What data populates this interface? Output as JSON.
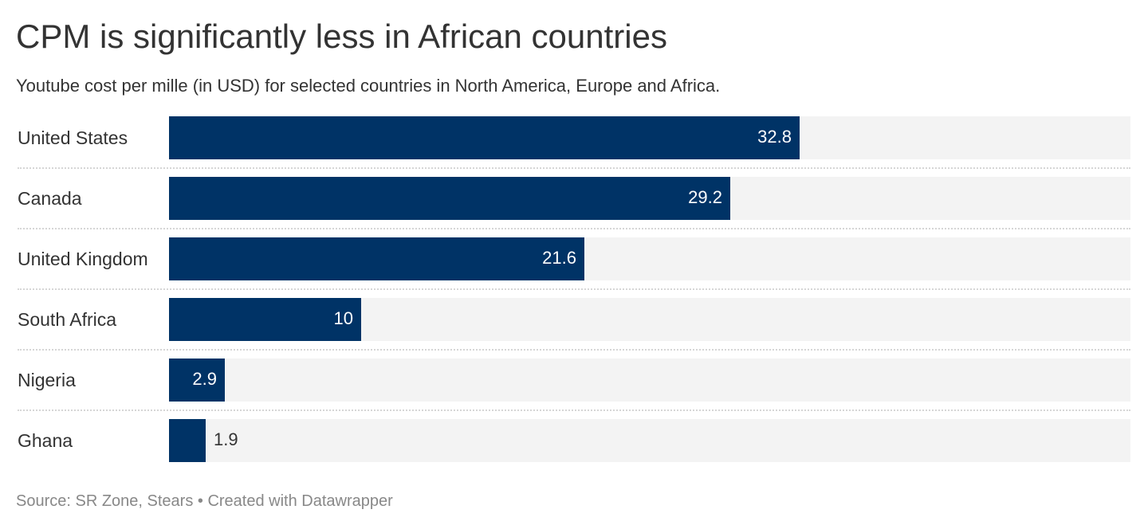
{
  "header": {
    "title": "CPM is significantly less in African countries",
    "subtitle": "Youtube cost per mille (in USD) for selected countries in North America, Europe and Africa."
  },
  "footer": {
    "source": "Source: SR Zone, Stears • Created with Datawrapper"
  },
  "colors": {
    "bar": "#003366",
    "bar_background": "#f3f3f3",
    "value_inside": "#ffffff",
    "value_outside": "#333333"
  },
  "chart_data": {
    "type": "bar",
    "orientation": "horizontal",
    "title": "CPM is significantly less in African countries",
    "subtitle": "Youtube cost per mille (in USD) for selected countries in North America, Europe and Africa.",
    "categories": [
      "United States",
      "Canada",
      "United Kingdom",
      "South Africa",
      "Nigeria",
      "Ghana"
    ],
    "values": [
      32.8,
      29.2,
      21.6,
      10,
      2.9,
      1.9
    ],
    "value_labels": [
      "32.8",
      "29.2",
      "21.6",
      "10",
      "2.9",
      "1.9"
    ],
    "xlim": [
      0,
      50
    ],
    "grid": false,
    "legend": "none"
  }
}
